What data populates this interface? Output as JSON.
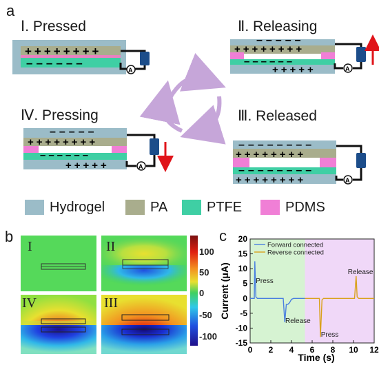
{
  "panels": {
    "a": "a",
    "b": "b",
    "c": "c"
  },
  "stages": [
    {
      "num": "Ⅰ",
      "title": ". Pressed"
    },
    {
      "num": "Ⅱ",
      "title": ". Releasing"
    },
    {
      "num": "Ⅳ",
      "title": ". Pressing"
    },
    {
      "num": "Ⅲ",
      "title": ". Released"
    }
  ],
  "legend": [
    {
      "label": "Hydrogel",
      "color": "#9bbcc8"
    },
    {
      "label": "PA",
      "color": "#a9ad8d"
    },
    {
      "label": "PTFE",
      "color": "#3fcfa4"
    },
    {
      "label": "PDMS",
      "color": "#f07fd6"
    }
  ],
  "ammeter_symbol": "A",
  "heatmap": {
    "tiles": [
      "I",
      "II",
      "IV",
      "III"
    ],
    "colorbar_ticks": [
      "100",
      "50",
      "0",
      "-50",
      "-100"
    ]
  },
  "chart_data": {
    "type": "line",
    "xlabel": "Time (s)",
    "ylabel": "Current (μA)",
    "xlim": [
      0,
      12
    ],
    "ylim": [
      -15,
      20
    ],
    "xticks": [
      0,
      2,
      4,
      6,
      8,
      10,
      12
    ],
    "yticks": [
      20,
      15,
      10,
      5,
      0,
      -5,
      -10,
      -15
    ],
    "series": [
      {
        "name": "Forward connected",
        "color": "#4a7fe0",
        "x": [
          0,
          0.4,
          0.45,
          0.55,
          0.7,
          3.2,
          3.35,
          3.5,
          3.65,
          3.8,
          4.0,
          4.2,
          5.3
        ],
        "y": [
          0,
          0,
          12.5,
          0.5,
          0,
          0,
          -8,
          -2,
          -2,
          -1.5,
          -0.3,
          0,
          0
        ]
      },
      {
        "name": "Reverse connected",
        "color": "#d9a21e",
        "x": [
          5.3,
          6.7,
          6.8,
          6.95,
          7.1,
          10.1,
          10.25,
          10.35,
          10.5,
          12
        ],
        "y": [
          0,
          0,
          -13,
          -0.5,
          0,
          0,
          7.5,
          0.5,
          0,
          0
        ]
      }
    ],
    "annotations": [
      "Press",
      "Release",
      "Release",
      "Press"
    ],
    "regions": {
      "green": "#d6f3d2",
      "purple": "#f0d8f8"
    }
  }
}
